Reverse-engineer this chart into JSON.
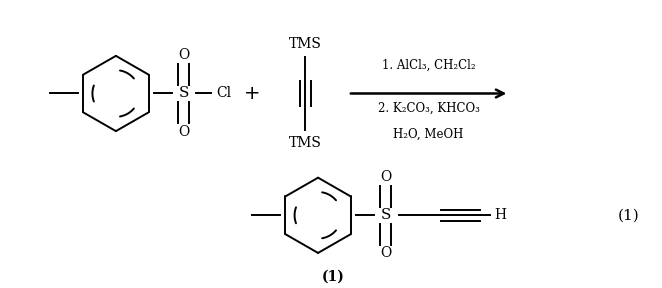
{
  "background_color": "#ffffff",
  "figsize": [
    6.62,
    2.88
  ],
  "dpi": 100,
  "reagent_line1": "1. AlCl₃, CH₂Cl₂",
  "reagent_line2": "2. K₂CO₃, KHCO₃",
  "reagent_line3": "H₂O, MeOH",
  "plus_sign": "+",
  "tms_top": "TMS",
  "tms_bottom": "TMS",
  "product_label": "(1)",
  "equation_number": "(1)",
  "line_color": "#000000",
  "lw": 1.4,
  "font_size": 10,
  "font_size_eq": 11
}
